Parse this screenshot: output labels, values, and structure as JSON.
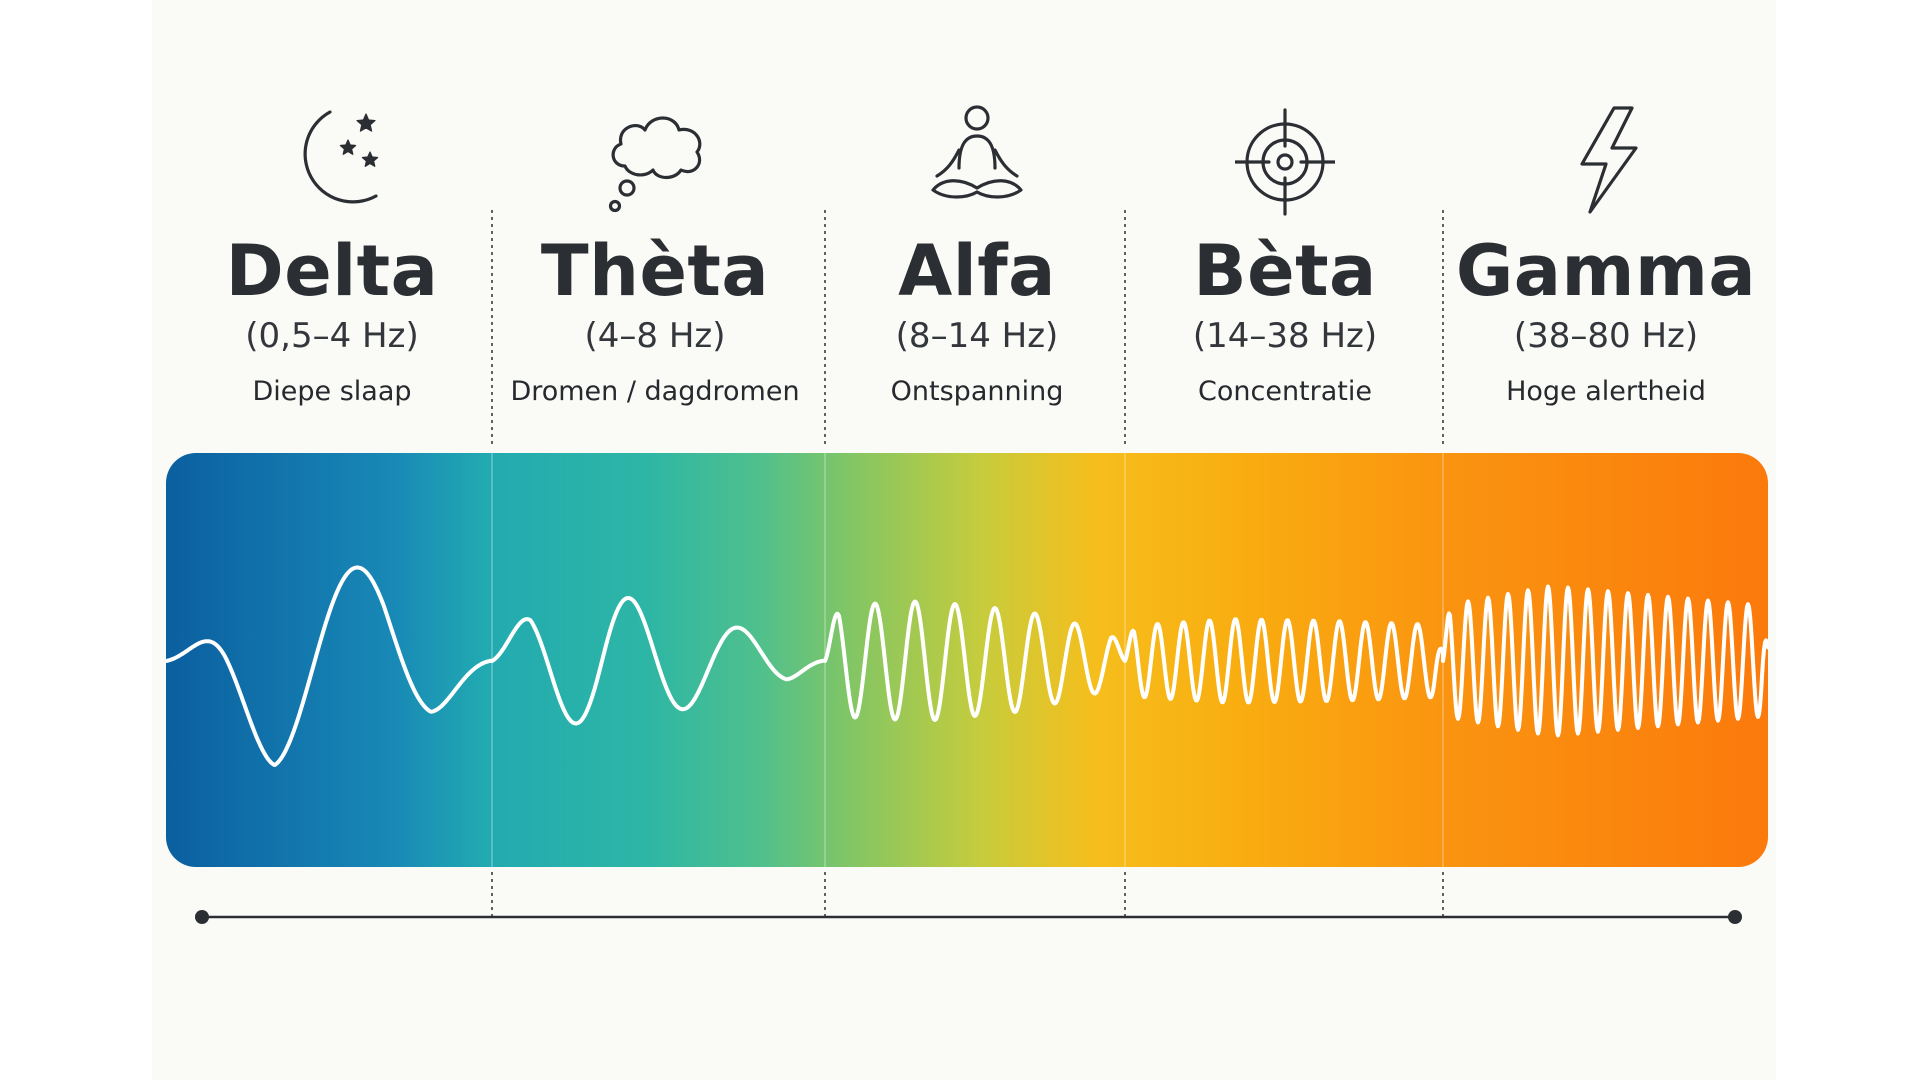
{
  "bands": [
    {
      "key": "delta",
      "name": "Delta",
      "range": "(0,5–4 Hz)",
      "description": "Diepe slaap",
      "icon": "moon-stars-icon",
      "low_hz": 0.5,
      "high_hz": 4
    },
    {
      "key": "theta",
      "name": "Thèta",
      "range": "(4–8 Hz)",
      "description": "Dromen / dagdromen",
      "icon": "thought-cloud-icon",
      "low_hz": 4,
      "high_hz": 8
    },
    {
      "key": "alfa",
      "name": "Alfa",
      "range": "(8–14 Hz)",
      "description": "Ontspanning",
      "icon": "meditation-icon",
      "low_hz": 8,
      "high_hz": 14
    },
    {
      "key": "beta",
      "name": "Bèta",
      "range": "(14–38 Hz)",
      "description": "Concentratie",
      "icon": "target-icon",
      "low_hz": 14,
      "high_hz": 38
    },
    {
      "key": "gamma",
      "name": "Gamma",
      "range": "(38–80 Hz)",
      "description": "Hoge alertheid",
      "icon": "lightning-icon",
      "low_hz": 38,
      "high_hz": 80
    }
  ],
  "colors": {
    "text": "#2b2e33",
    "wave": "#ffffff",
    "divider": "#3a3d42",
    "axis": "#2b2e33",
    "gradient_start": "#0b5fa0",
    "gradient_mid": "#4fc08d",
    "gradient_yellow": "#f6be1c",
    "gradient_end": "#fb7a0c"
  }
}
